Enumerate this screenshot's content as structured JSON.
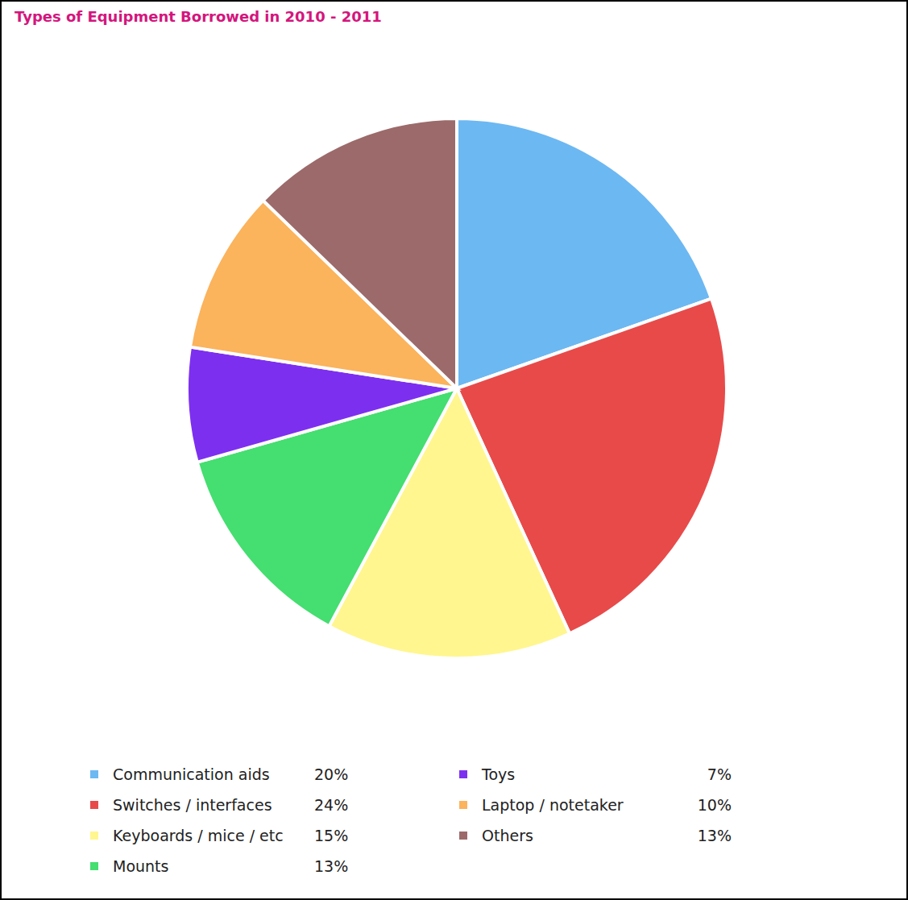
{
  "chart_data": {
    "type": "pie",
    "title": "Types of Equipment Borrowed in 2010 - 2011",
    "categories": [
      "Communication aids",
      "Switches / interfaces",
      "Keyboards / mice / etc",
      "Mounts",
      "Toys",
      "Laptop / notetaker",
      "Others"
    ],
    "values": [
      20,
      24,
      15,
      13,
      7,
      10,
      13
    ],
    "value_labels": [
      "20%",
      "24%",
      "15%",
      "13%",
      "7%",
      "10%",
      "13%"
    ],
    "colors": [
      "#6cb8f2",
      "#e84a4a",
      "#fff68f",
      "#45de70",
      "#7d2ff0",
      "#fbb35c",
      "#9c6a6a"
    ],
    "legend": "bottom"
  }
}
